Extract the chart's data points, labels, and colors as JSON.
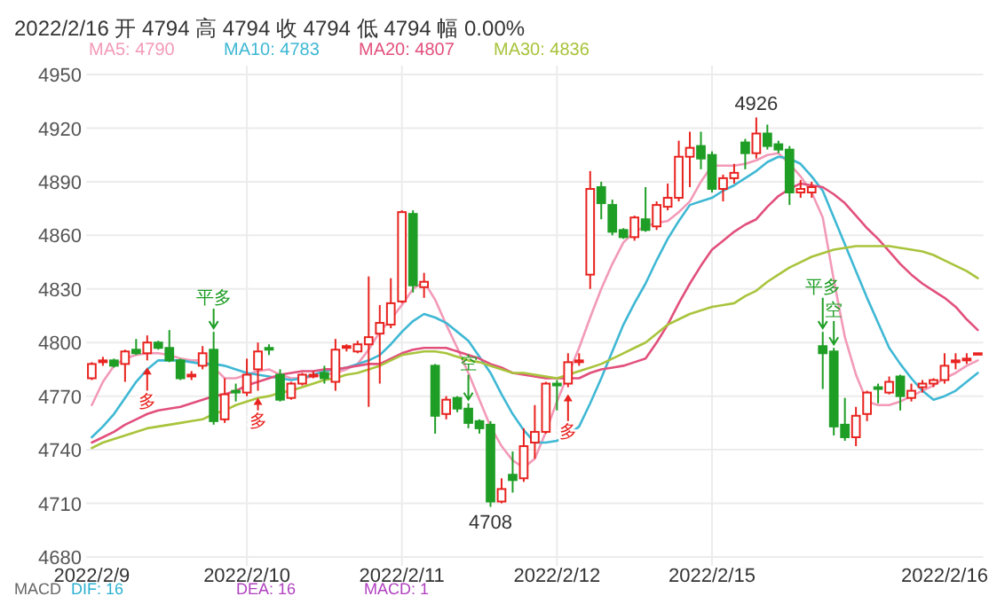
{
  "chart_data": {
    "type": "candlestick",
    "title": "2022/2/16  开 4794  高 4794  收 4794  低 4794  幅 0.00%",
    "categories": [
      "2022/2/9",
      null,
      null,
      null,
      null,
      null,
      null,
      null,
      null,
      null,
      null,
      null,
      null,
      null,
      "2022/2/10",
      null,
      null,
      null,
      null,
      null,
      null,
      null,
      null,
      null,
      null,
      null,
      null,
      null,
      "2022/2/11",
      null,
      null,
      null,
      null,
      null,
      null,
      null,
      null,
      null,
      null,
      null,
      null,
      null,
      "2022/2/12",
      null,
      null,
      null,
      null,
      null,
      null,
      null,
      null,
      null,
      null,
      null,
      null,
      null,
      "2022/2/15",
      null,
      null,
      null,
      null,
      null,
      null,
      null,
      null,
      null,
      null,
      null,
      null,
      null,
      null,
      null,
      null,
      null,
      null,
      null,
      null,
      "2022/2/16",
      null,
      null,
      null
    ],
    "ohlc": [
      [
        4780,
        4789,
        4779,
        4788
      ],
      [
        4789,
        4792,
        4787,
        4790
      ],
      [
        4790,
        4791,
        4786,
        4787
      ],
      [
        4788,
        4796,
        4778,
        4795
      ],
      [
        4796,
        4802,
        4793,
        4794
      ],
      [
        4794,
        4804,
        4790,
        4800
      ],
      [
        4800,
        4801,
        4796,
        4797
      ],
      [
        4797,
        4807,
        4789,
        4790
      ],
      [
        4790,
        4791,
        4779,
        4780
      ],
      [
        4781,
        4784,
        4779,
        4782
      ],
      [
        4787,
        4798,
        4785,
        4794
      ],
      [
        4796,
        4806,
        4754,
        4756
      ],
      [
        4757,
        4780,
        4755,
        4771
      ],
      [
        4773,
        4777,
        4767,
        4772
      ],
      [
        4772,
        4791,
        4770,
        4782
      ],
      [
        4785,
        4800,
        4773,
        4795
      ],
      [
        4797,
        4799,
        4793,
        4796
      ],
      [
        4782,
        4785,
        4767,
        4768
      ],
      [
        4769,
        4778,
        4768,
        4777
      ],
      [
        4777,
        4783,
        4776,
        4782
      ],
      [
        4781,
        4784,
        4780,
        4782
      ],
      [
        4783,
        4787,
        4777,
        4780
      ],
      [
        4778,
        4802,
        4773,
        4796
      ],
      [
        4797,
        4799,
        4795,
        4798
      ],
      [
        4795,
        4801,
        4794,
        4799
      ],
      [
        4799,
        4837,
        4764,
        4803
      ],
      [
        4805,
        4821,
        4777,
        4811
      ],
      [
        4810,
        4836,
        4808,
        4822
      ],
      [
        4823,
        4874,
        4822,
        4873
      ],
      [
        4872,
        4874,
        4828,
        4832
      ],
      [
        4831,
        4839,
        4825,
        4834
      ],
      [
        4787,
        4788,
        4749,
        4759
      ],
      [
        4760,
        4770,
        4757,
        4768
      ],
      [
        4769,
        4770,
        4761,
        4763
      ],
      [
        4763,
        4766,
        4752,
        4755
      ],
      [
        4756,
        4757,
        4749,
        4752
      ],
      [
        4754,
        4756,
        4708,
        4711
      ],
      [
        4711,
        4724,
        4710,
        4718
      ],
      [
        4726,
        4739,
        4716,
        4723
      ],
      [
        4724,
        4752,
        4722,
        4742
      ],
      [
        4744,
        4765,
        4735,
        4750
      ],
      [
        4750,
        4778,
        4749,
        4777
      ],
      [
        4777,
        4779,
        4762,
        4776
      ],
      [
        4777,
        4794,
        4775,
        4789
      ],
      [
        4789,
        4794,
        4787,
        4790
      ],
      [
        4838,
        4896,
        4830,
        4886
      ],
      [
        4887,
        4890,
        4869,
        4878
      ],
      [
        4877,
        4880,
        4860,
        4862
      ],
      [
        4863,
        4864,
        4858,
        4859
      ],
      [
        4859,
        4871,
        4857,
        4870
      ],
      [
        4869,
        4887,
        4862,
        4863
      ],
      [
        4865,
        4879,
        4863,
        4877
      ],
      [
        4876,
        4889,
        4874,
        4881
      ],
      [
        4881,
        4913,
        4879,
        4904
      ],
      [
        4904,
        4918,
        4887,
        4909
      ],
      [
        4910,
        4918,
        4897,
        4903
      ],
      [
        4905,
        4907,
        4884,
        4886
      ],
      [
        4886,
        4894,
        4879,
        4892
      ],
      [
        4892,
        4900,
        4889,
        4895
      ],
      [
        4912,
        4914,
        4897,
        4906
      ],
      [
        4906,
        4926,
        4903,
        4917
      ],
      [
        4917,
        4922,
        4908,
        4910
      ],
      [
        4911,
        4913,
        4906,
        4908
      ],
      [
        4908,
        4910,
        4877,
        4884
      ],
      [
        4884,
        4891,
        4881,
        4886
      ],
      [
        4884,
        4890,
        4881,
        4887
      ],
      [
        4798,
        4806,
        4774,
        4794
      ],
      [
        4795,
        4797,
        4748,
        4753
      ],
      [
        4754,
        4769,
        4745,
        4747
      ],
      [
        4747,
        4764,
        4742,
        4759
      ],
      [
        4760,
        4773,
        4756,
        4772
      ],
      [
        4775,
        4777,
        4766,
        4774
      ],
      [
        4772,
        4781,
        4771,
        4778
      ],
      [
        4781,
        4782,
        4762,
        4770
      ],
      [
        4769,
        4777,
        4767,
        4773
      ],
      [
        4775,
        4779,
        4772,
        4777
      ],
      [
        4777,
        4780,
        4775,
        4779
      ],
      [
        4779,
        4794,
        4777,
        4787
      ],
      [
        4789,
        4794,
        4785,
        4790
      ],
      [
        4790,
        4794,
        4788,
        4791
      ],
      [
        4794,
        4794,
        4794,
        4794
      ]
    ],
    "series": [
      {
        "type": "line",
        "name": "MA5: 4790",
        "color": "#f29ab8",
        "values": [
          4765,
          4778,
          4787,
          4791,
          4793,
          4794,
          4794,
          4793,
          4791,
          4790,
          4790,
          4786,
          4780,
          4780,
          4782,
          4784,
          4785,
          4782,
          4780,
          4780,
          4781,
          4782,
          4783,
          4785,
          4788,
          4796,
          4806,
          4813,
          4821,
          4830,
          4834,
          4824,
          4810,
          4797,
          4783,
          4768,
          4753,
          4742,
          4734,
          4730,
          4735,
          4750,
          4767,
          4782,
          4797,
          4814,
          4830,
          4844,
          4856,
          4862,
          4865,
          4867,
          4868,
          4873,
          4879,
          4890,
          4899,
          4899,
          4899,
          4900,
          4902,
          4905,
          4906,
          4900,
          4893,
          4884,
          4870,
          4835,
          4803,
          4782,
          4767,
          4765,
          4765,
          4767,
          4770,
          4773,
          4776,
          4780,
          4783,
          4787,
          4790
        ]
      },
      {
        "type": "line",
        "name": "MA10: 4783",
        "color": "#3fb8d4",
        "values": [
          4747,
          4753,
          4760,
          4769,
          4778,
          4785,
          4790,
          4790,
          4790,
          4789,
          4788,
          4788,
          4787,
          4785,
          4783,
          4782,
          4781,
          4780,
          4779,
          4780,
          4782,
          4784,
          4785,
          4786,
          4788,
          4790,
          4793,
          4799,
          4806,
          4812,
          4816,
          4814,
          4811,
          4806,
          4801,
          4792,
          4783,
          4771,
          4760,
          4751,
          4744,
          4744,
          4745,
          4748,
          4753,
          4766,
          4780,
          4795,
          4810,
          4822,
          4833,
          4846,
          4858,
          4868,
          4877,
          4879,
          4881,
          4885,
          4888,
          4892,
          4896,
          4901,
          4904,
          4903,
          4900,
          4893,
          4885,
          4870,
          4855,
          4840,
          4825,
          4811,
          4797,
          4788,
          4780,
          4773,
          4768,
          4770,
          4773,
          4778,
          4783
        ]
      },
      {
        "type": "line",
        "name": "MA20: 4807",
        "color": "#e2507c",
        "values": [
          4744,
          4747,
          4750,
          4754,
          4757,
          4760,
          4762,
          4763,
          4764,
          4766,
          4768,
          4770,
          4771,
          4773,
          4776,
          4778,
          4780,
          4782,
          4783,
          4784,
          4784,
          4785,
          4785,
          4786,
          4787,
          4788,
          4788,
          4791,
          4794,
          4796,
          4797,
          4797,
          4797,
          4795,
          4793,
          4791,
          4788,
          4786,
          4783,
          4782,
          4781,
          4780,
          4780,
          4780,
          4780,
          4783,
          4785,
          4786,
          4787,
          4789,
          4791,
          4800,
          4810,
          4822,
          4833,
          4843,
          4852,
          4857,
          4862,
          4866,
          4869,
          4876,
          4882,
          4886,
          4889,
          4888,
          4887,
          4883,
          4878,
          4871,
          4864,
          4858,
          4851,
          4844,
          4838,
          4833,
          4829,
          4825,
          4820,
          4813,
          4807
        ]
      },
      {
        "type": "line",
        "name": "MA30: 4836",
        "color": "#a8c43c",
        "values": [
          4741,
          4744,
          4746,
          4748,
          4750,
          4752,
          4753,
          4754,
          4755,
          4756,
          4757,
          4760,
          4762,
          4765,
          4767,
          4769,
          4770,
          4772,
          4773,
          4775,
          4777,
          4779,
          4780,
          4782,
          4783,
          4785,
          4787,
          4790,
          4793,
          4794,
          4795,
          4795,
          4794,
          4792,
          4790,
          4789,
          4787,
          4785,
          4783,
          4783,
          4782,
          4781,
          4780,
          4782,
          4784,
          4786,
          4788,
          4791,
          4794,
          4797,
          4800,
          4805,
          4810,
          4813,
          4816,
          4818,
          4820,
          4821,
          4822,
          4826,
          4829,
          4834,
          4838,
          4842,
          4845,
          4848,
          4850,
          4852,
          4853,
          4854,
          4854,
          4854,
          4854,
          4853,
          4852,
          4851,
          4849,
          4846,
          4843,
          4840,
          4836
        ]
      }
    ],
    "ylim": [
      4675,
      4955
    ],
    "yticks": [
      4680,
      4710,
      4740,
      4770,
      4800,
      4830,
      4860,
      4890,
      4920,
      4950
    ],
    "grid": true,
    "legend": "top left",
    "annotations": [
      "平多",
      "空",
      "平多",
      "空",
      "多",
      "多",
      "多",
      {
        "text": "4926",
        "y": 4926
      },
      {
        "text": "4708",
        "y": 4708
      },
      "MACD",
      "DIF: 16",
      "DEA: 16",
      "MACD: 1"
    ]
  }
}
